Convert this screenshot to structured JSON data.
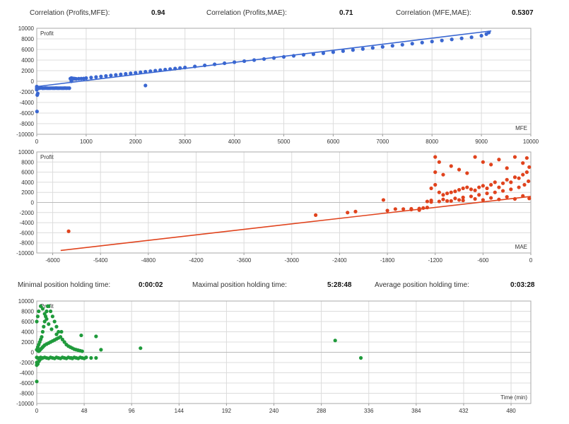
{
  "stats_top": [
    {
      "label": "Correlation (Profits,MFE):",
      "value": "0.94"
    },
    {
      "label": "Correlation (Profits,MAE):",
      "value": "0.71"
    },
    {
      "label": "Correlation (MFE,MAE):",
      "value": "0.5307"
    }
  ],
  "stats_mid": [
    {
      "label": "Minimal position holding time:",
      "value": "0:00:02"
    },
    {
      "label": "Maximal position holding time:",
      "value": "5:28:48"
    },
    {
      "label": "Average position holding time:",
      "value": "0:03:28"
    }
  ],
  "colors": {
    "mfe": "#3a67d1",
    "mae": "#e0431d",
    "time": "#1f9a3b",
    "grid": "#dcdcdc"
  },
  "chart_data": [
    {
      "id": "mfe",
      "type": "scatter",
      "title": "",
      "xlabel": "MFE",
      "ylabel": "Profit",
      "xlim": [
        0,
        10000
      ],
      "ylim": [
        -10000,
        10000
      ],
      "xticks": [
        0,
        1000,
        2000,
        3000,
        4000,
        5000,
        6000,
        7000,
        8000,
        9000,
        10000
      ],
      "yticks": [
        -10000,
        -8000,
        -6000,
        -4000,
        -2000,
        0,
        2000,
        4000,
        6000,
        8000,
        10000
      ],
      "grid": true,
      "trendline": [
        [
          0,
          -1000
        ],
        [
          9200,
          9500
        ]
      ],
      "series": [
        {
          "x": [
            0,
            30,
            60,
            90,
            120,
            150,
            180,
            210,
            240,
            270,
            300,
            330,
            360,
            390,
            420,
            450,
            480,
            510,
            540,
            570,
            600,
            630,
            660,
            20,
            10,
            5,
            680,
            700,
            720,
            740,
            760,
            780,
            800,
            850,
            900,
            950,
            1000,
            1100,
            1200,
            1300,
            1400,
            1500,
            1600,
            1700,
            1800,
            1900,
            2000,
            2100,
            2200,
            2300,
            2400,
            2500,
            2600,
            2700,
            2800,
            2900,
            3000,
            3200,
            3400,
            3600,
            3800,
            4000,
            4200,
            4400,
            4600,
            4800,
            5000,
            5200,
            5400,
            5600,
            5800,
            6000,
            6200,
            6400,
            6600,
            6800,
            7000,
            7200,
            7400,
            7600,
            7800,
            8000,
            8200,
            8400,
            8600,
            8800,
            9000,
            9100,
            9150,
            2200,
            0,
            0,
            700,
            720
          ],
          "y": [
            -1300,
            -1350,
            -1300,
            -1250,
            -1320,
            -1300,
            -1280,
            -1300,
            -1310,
            -1300,
            -1290,
            -1300,
            -1300,
            -1280,
            -1300,
            -1300,
            -1290,
            -1300,
            -1300,
            -1280,
            -1300,
            -1290,
            -1300,
            -2300,
            -2600,
            -5700,
            500,
            600,
            550,
            520,
            500,
            480,
            450,
            480,
            500,
            520,
            600,
            700,
            800,
            900,
            1000,
            1100,
            1200,
            1300,
            1400,
            1500,
            1600,
            1700,
            1800,
            1900,
            2000,
            2100,
            2200,
            2300,
            2400,
            2500,
            2600,
            2800,
            3000,
            3200,
            3400,
            3600,
            3800,
            4000,
            4200,
            4400,
            4600,
            4800,
            5000,
            5100,
            5300,
            5500,
            5700,
            5900,
            6100,
            6300,
            6500,
            6700,
            6900,
            7100,
            7300,
            7500,
            7700,
            7900,
            8100,
            8300,
            8600,
            8900,
            9200,
            -800,
            -1000,
            -1600,
            0,
            400
          ]
        }
      ]
    },
    {
      "id": "mae",
      "type": "scatter",
      "title": "",
      "xlabel": "MAE",
      "ylabel": "Profit",
      "xlim": [
        -6200,
        0
      ],
      "ylim": [
        -10000,
        10000
      ],
      "xticks": [
        -6000,
        -5400,
        -4800,
        -4200,
        -3600,
        -3000,
        -2400,
        -1800,
        -1200,
        -600,
        0
      ],
      "yticks": [
        -10000,
        -8000,
        -6000,
        -4000,
        -2000,
        0,
        2000,
        4000,
        6000,
        8000,
        10000
      ],
      "grid": true,
      "trendline": [
        [
          -5900,
          -9500
        ],
        [
          0,
          1200
        ]
      ],
      "series": [
        {
          "x": [
            -5800,
            -2700,
            -2300,
            -2200,
            -1800,
            -1850,
            -1700,
            -1600,
            -1500,
            -1400,
            -1350,
            -1300,
            -1250,
            -1200,
            -1150,
            -1100,
            -1050,
            -1000,
            -950,
            -900,
            -850,
            -800,
            -750,
            -700,
            -650,
            -600,
            -550,
            -500,
            -450,
            -400,
            -350,
            -300,
            -250,
            -200,
            -150,
            -100,
            -50,
            -20,
            -1200,
            -1200,
            -1150,
            -1100,
            -1000,
            -900,
            -800,
            -700,
            -600,
            -500,
            -400,
            -300,
            -200,
            -100,
            -50,
            -1300,
            -1250,
            -1100,
            -950,
            -850,
            -750,
            -650,
            -550,
            -450,
            -350,
            -250,
            -150,
            -80,
            -30,
            -1050,
            -900,
            -700,
            -500,
            -300,
            -100,
            -1250,
            -1150,
            -1000,
            -850,
            -600,
            -400,
            -200,
            -20,
            -1400,
            -1500
          ],
          "y": [
            -5700,
            -2500,
            -2000,
            -1800,
            -1600,
            500,
            -1300,
            -1300,
            -1250,
            -1200,
            -1100,
            -1000,
            2800,
            3500,
            2000,
            1500,
            1800,
            2000,
            2200,
            2500,
            2800,
            3000,
            2600,
            2400,
            3000,
            3300,
            2800,
            3500,
            4000,
            3000,
            3800,
            4500,
            4000,
            5000,
            4800,
            5500,
            6000,
            7000,
            9000,
            6000,
            8000,
            5500,
            7200,
            6500,
            5800,
            9000,
            8000,
            7500,
            8500,
            6800,
            9000,
            7800,
            8800,
            200,
            400,
            600,
            800,
            1000,
            1200,
            1500,
            1800,
            2000,
            2300,
            2600,
            3000,
            3500,
            4200,
            300,
            500,
            700,
            900,
            1100,
            1300,
            100,
            200,
            300,
            400,
            500,
            600,
            700,
            800,
            -1500,
            -1400
          ]
        }
      ]
    },
    {
      "id": "time",
      "type": "scatter",
      "title": "",
      "xlabel": "Time (min)",
      "ylabel": "Profit",
      "xlim": [
        0,
        500
      ],
      "ylim": [
        -10000,
        10000
      ],
      "xticks": [
        0,
        48,
        96,
        144,
        192,
        240,
        288,
        336,
        384,
        432,
        480
      ],
      "yticks": [
        -10000,
        -8000,
        -6000,
        -4000,
        -2000,
        0,
        2000,
        4000,
        6000,
        8000,
        10000
      ],
      "grid": true,
      "series": [
        {
          "x": [
            0,
            1,
            2,
            3,
            4,
            5,
            6,
            7,
            8,
            9,
            10,
            11,
            12,
            14,
            16,
            18,
            20,
            22,
            24,
            26,
            28,
            30,
            32,
            34,
            36,
            38,
            40,
            42,
            44,
            46,
            0,
            1,
            2,
            3,
            4,
            5,
            6,
            8,
            10,
            12,
            14,
            16,
            18,
            20,
            22,
            24,
            26,
            28,
            30,
            32,
            34,
            36,
            38,
            40,
            42,
            44,
            46,
            48,
            50,
            55,
            60,
            65,
            45,
            60,
            35,
            25,
            20,
            15,
            12,
            10,
            8,
            6,
            4,
            2,
            1,
            0,
            0,
            1,
            2,
            3,
            2,
            1,
            3,
            4,
            5,
            6,
            7,
            8,
            10,
            12,
            14,
            16,
            18,
            20,
            22,
            105,
            302,
            328,
            0,
            0
          ],
          "y": [
            500,
            1000,
            1500,
            2000,
            2500,
            3000,
            4000,
            5000,
            6000,
            7000,
            8000,
            9000,
            9000,
            8000,
            7000,
            6000,
            5000,
            4000,
            3000,
            2500,
            2000,
            1500,
            1200,
            1000,
            800,
            600,
            500,
            400,
            300,
            200,
            -1000,
            -1100,
            -1200,
            -1100,
            -1000,
            -1200,
            -1100,
            -1000,
            -1100,
            -1200,
            -1000,
            -1100,
            -1200,
            -1000,
            -1100,
            -1200,
            -1000,
            -1100,
            -1200,
            -1000,
            -1100,
            -1200,
            -1000,
            -1100,
            -1200,
            -1000,
            -1100,
            -1200,
            -1000,
            -1100,
            -1100,
            500,
            3300,
            3100,
            -1100,
            4000,
            3500,
            4500,
            5500,
            6500,
            7500,
            8500,
            9000,
            8000,
            7000,
            6000,
            -2000,
            -2300,
            -1800,
            -1500,
            200,
            300,
            400,
            600,
            800,
            1000,
            1200,
            1400,
            1600,
            1800,
            2000,
            2200,
            2400,
            2600,
            2800,
            800,
            2300,
            -1100,
            -2500,
            -5700
          ]
        }
      ]
    }
  ]
}
